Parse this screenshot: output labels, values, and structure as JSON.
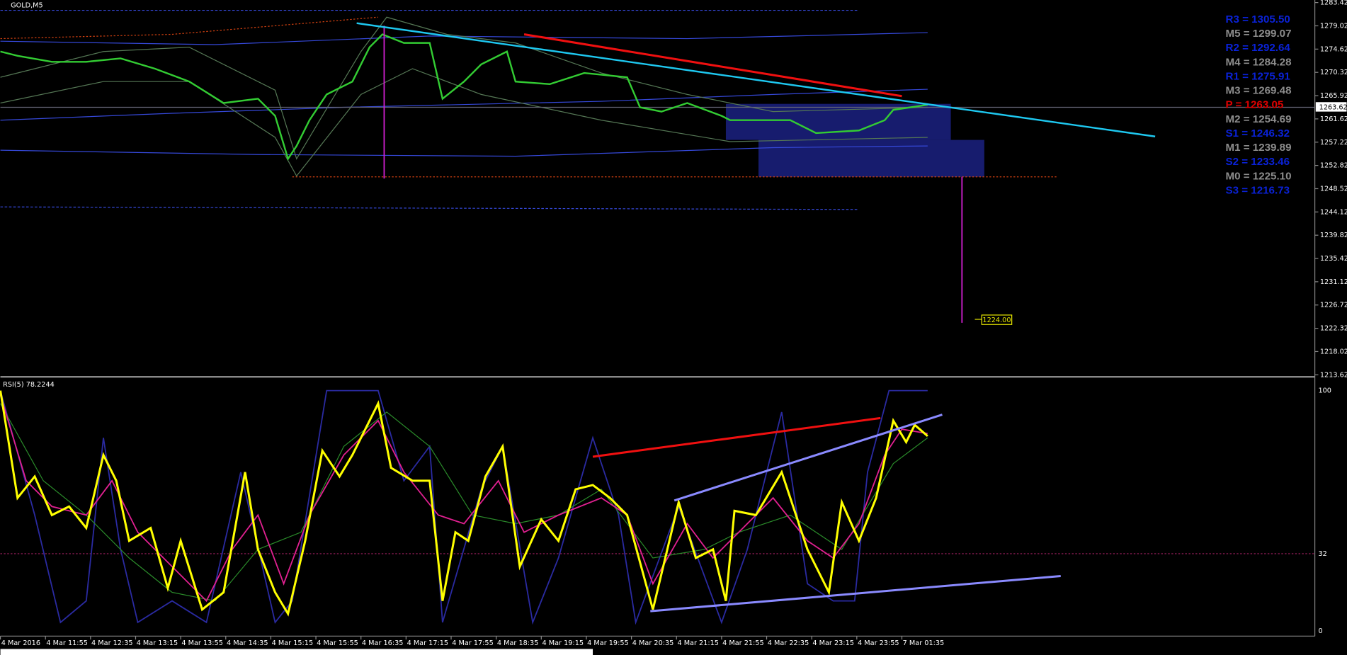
{
  "header": {
    "symbol": "GOLD,M5"
  },
  "price_axis": {
    "labels": [
      "1283.42",
      "1279.02",
      "1274.62",
      "1270.32",
      "1265.92",
      "1261.62",
      "1257.22",
      "1252.82",
      "1248.52",
      "1244.12",
      "1239.82",
      "1235.42",
      "1231.12",
      "1226.72",
      "1222.32",
      "1218.02",
      "1213.62"
    ],
    "current": "1263.62"
  },
  "pivots": [
    {
      "text": "R3 = 1305.50",
      "color": "#0a22d8"
    },
    {
      "text": "M5 = 1299.07",
      "color": "#8c8c8c"
    },
    {
      "text": "R2 = 1292.64",
      "color": "#0a22d8"
    },
    {
      "text": "M4 = 1284.28",
      "color": "#8c8c8c"
    },
    {
      "text": "R1 = 1275.91",
      "color": "#0a22d8"
    },
    {
      "text": "M3 = 1269.48",
      "color": "#8c8c8c"
    },
    {
      "text": "P   = 1263.05",
      "color": "#e00000"
    },
    {
      "text": "M2 = 1254.69",
      "color": "#8c8c8c"
    },
    {
      "text": "S1 = 1246.32",
      "color": "#0a22d8"
    },
    {
      "text": "M1 = 1239.89",
      "color": "#8c8c8c"
    },
    {
      "text": "S2 = 1233.46",
      "color": "#0a22d8"
    },
    {
      "text": "M0 = 1225.10",
      "color": "#8c8c8c"
    },
    {
      "text": "S3 = 1216.73",
      "color": "#0a22d8"
    }
  ],
  "target_label": "1224.00",
  "rsi": {
    "label": "RSI(5) 78.2244",
    "axis": [
      "100",
      "32",
      "0"
    ]
  },
  "time_axis": [
    "4 Mar 2016",
    "4 Mar 11:55",
    "4 Mar 12:35",
    "4 Mar 13:15",
    "4 Mar 13:55",
    "4 Mar 14:35",
    "4 Mar 15:15",
    "4 Mar 15:55",
    "4 Mar 16:35",
    "4 Mar 17:15",
    "4 Mar 17:55",
    "4 Mar 18:35",
    "4 Mar 19:15",
    "4 Mar 19:55",
    "4 Mar 20:35",
    "4 Mar 21:15",
    "4 Mar 21:55",
    "4 Mar 22:35",
    "4 Mar 23:15",
    "4 Mar 23:55",
    "7 Mar 01:35"
  ]
}
